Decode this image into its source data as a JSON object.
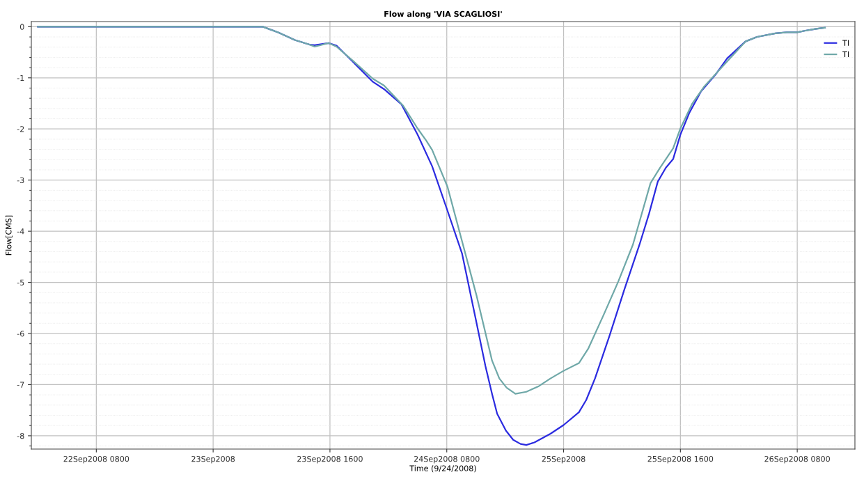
{
  "chart_data": {
    "type": "line",
    "title": "Flow along 'VIA SCAGLIOSI'",
    "xlabel": "Time (9/24/2008)",
    "ylabel": "Flow[CMS]",
    "series": [
      {
        "name": "TI",
        "color": "#2b2be0",
        "x": [
          "2008-09-22T00:00",
          "2008-09-23T06:06",
          "2008-09-23T06:48",
          "2008-09-23T08:54",
          "2008-09-23T11:12",
          "2008-09-23T13:12",
          "2008-09-23T13:54",
          "2008-09-23T15:48",
          "2008-09-23T16:54",
          "2008-09-23T19:06",
          "2008-09-23T21:54",
          "2008-09-23T23:24",
          "2008-09-24T01:48",
          "2008-09-24T04:00",
          "2008-09-24T06:00",
          "2008-09-24T08:06",
          "2008-09-24T10:06",
          "2008-09-24T12:06",
          "2008-09-24T13:18",
          "2008-09-24T14:12",
          "2008-09-24T14:54",
          "2008-09-24T16:06",
          "2008-09-24T17:06",
          "2008-09-24T18:06",
          "2008-09-24T18:54",
          "2008-09-24T20:00",
          "2008-09-24T22:12",
          "2008-09-25T00:00",
          "2008-09-25T02:06",
          "2008-09-25T03:06",
          "2008-09-25T04:18",
          "2008-09-25T06:18",
          "2008-09-25T08:18",
          "2008-09-25T10:24",
          "2008-09-25T11:42",
          "2008-09-25T12:54",
          "2008-09-25T14:00",
          "2008-09-25T15:00",
          "2008-09-25T16:00",
          "2008-09-25T17:12",
          "2008-09-25T18:48",
          "2008-09-25T20:54",
          "2008-09-25T22:24",
          "2008-09-26T00:54",
          "2008-09-26T02:30",
          "2008-09-26T05:00",
          "2008-09-26T06:36",
          "2008-09-26T08:00",
          "2008-09-26T09:00",
          "2008-09-26T10:36",
          "2008-09-26T11:48"
        ],
        "values": [
          0,
          0,
          0,
          -0.11,
          -0.26,
          -0.35,
          -0.36,
          -0.32,
          -0.37,
          -0.68,
          -1.08,
          -1.22,
          -1.52,
          -2.11,
          -2.73,
          -3.6,
          -4.44,
          -5.81,
          -6.64,
          -7.18,
          -7.57,
          -7.9,
          -8.08,
          -8.16,
          -8.18,
          -8.13,
          -7.96,
          -7.79,
          -7.54,
          -7.3,
          -6.88,
          -6.04,
          -5.15,
          -4.26,
          -3.66,
          -3.03,
          -2.76,
          -2.59,
          -2.11,
          -1.69,
          -1.27,
          -0.92,
          -0.62,
          -0.29,
          -0.2,
          -0.13,
          -0.11,
          -0.11,
          -0.08,
          -0.04,
          -0.02
        ]
      },
      {
        "name": "TI",
        "color": "#6fa8a8",
        "x": [
          "2008-09-22T00:00",
          "2008-09-23T06:06",
          "2008-09-23T06:48",
          "2008-09-23T08:54",
          "2008-09-23T11:12",
          "2008-09-23T13:12",
          "2008-09-23T13:54",
          "2008-09-23T15:48",
          "2008-09-23T16:54",
          "2008-09-23T19:06",
          "2008-09-23T21:54",
          "2008-09-23T23:24",
          "2008-09-24T02:00",
          "2008-09-24T04:00",
          "2008-09-24T05:12",
          "2008-09-24T06:00",
          "2008-09-24T08:06",
          "2008-09-24T10:06",
          "2008-09-24T12:06",
          "2008-09-24T14:12",
          "2008-09-24T15:12",
          "2008-09-24T16:12",
          "2008-09-24T17:24",
          "2008-09-24T18:54",
          "2008-09-24T20:36",
          "2008-09-24T22:12",
          "2008-09-25T00:00",
          "2008-09-25T02:06",
          "2008-09-25T03:24",
          "2008-09-25T05:30",
          "2008-09-25T07:30",
          "2008-09-25T09:30",
          "2008-09-25T11:54",
          "2008-09-25T13:12",
          "2008-09-25T15:00",
          "2008-09-25T16:00",
          "2008-09-25T17:36",
          "2008-09-25T19:12",
          "2008-09-25T21:42",
          "2008-09-26T00:54",
          "2008-09-26T02:30",
          "2008-09-26T05:00",
          "2008-09-26T06:36",
          "2008-09-26T08:00",
          "2008-09-26T09:00",
          "2008-09-26T10:36",
          "2008-09-26T11:48"
        ],
        "values": [
          0,
          0,
          0,
          -0.11,
          -0.26,
          -0.35,
          -0.39,
          -0.32,
          -0.39,
          -0.66,
          -1.02,
          -1.15,
          -1.54,
          -1.99,
          -2.23,
          -2.41,
          -3.13,
          -4.2,
          -5.27,
          -6.53,
          -6.88,
          -7.06,
          -7.18,
          -7.14,
          -7.03,
          -6.88,
          -6.73,
          -6.58,
          -6.29,
          -5.63,
          -4.98,
          -4.26,
          -3.06,
          -2.76,
          -2.38,
          -1.99,
          -1.51,
          -1.18,
          -0.79,
          -0.29,
          -0.2,
          -0.13,
          -0.11,
          -0.11,
          -0.08,
          -0.04,
          -0.02
        ]
      }
    ],
    "xlim": [
      "2008-09-21T23:06",
      "2008-09-26T15:54"
    ],
    "xticks": [
      {
        "value": "2008-09-22T08:00",
        "label": "22Sep2008 0800"
      },
      {
        "value": "2008-09-23T00:00",
        "label": "23Sep2008"
      },
      {
        "value": "2008-09-23T16:00",
        "label": "23Sep2008 1600"
      },
      {
        "value": "2008-09-24T08:00",
        "label": "24Sep2008 0800"
      },
      {
        "value": "2008-09-25T00:00",
        "label": "25Sep2008"
      },
      {
        "value": "2008-09-25T16:00",
        "label": "25Sep2008 1600"
      },
      {
        "value": "2008-09-26T08:00",
        "label": "26Sep2008 0800"
      }
    ],
    "ylim": [
      -8.26,
      0.1
    ],
    "yticks": [
      0,
      -1,
      -2,
      -3,
      -4,
      -5,
      -6,
      -7,
      -8,
      {
        "value": -0.2,
        "label": null
      },
      {
        "value": -0.4,
        "label": null
      },
      {
        "value": -0.6,
        "label": null
      },
      {
        "value": -0.8,
        "label": null
      },
      {
        "value": -1.2,
        "label": null
      },
      {
        "value": -1.4,
        "label": null
      },
      {
        "value": -1.6,
        "label": null
      },
      {
        "value": -1.8,
        "label": null
      },
      {
        "value": -2.2,
        "label": null
      },
      {
        "value": -2.4,
        "label": null
      },
      {
        "value": -2.6,
        "label": null
      },
      {
        "value": -2.8,
        "label": null
      },
      {
        "value": -3.2,
        "label": null
      },
      {
        "value": -3.4,
        "label": null
      },
      {
        "value": -3.6,
        "label": null
      },
      {
        "value": -3.8,
        "label": null
      },
      {
        "value": -4.2,
        "label": null
      },
      {
        "value": -4.4,
        "label": null
      },
      {
        "value": -4.6,
        "label": null
      },
      {
        "value": -4.8,
        "label": null
      },
      {
        "value": -5.2,
        "label": null
      },
      {
        "value": -5.4,
        "label": null
      },
      {
        "value": -5.6,
        "label": null
      },
      {
        "value": -5.8,
        "label": null
      },
      {
        "value": -6.2,
        "label": null
      },
      {
        "value": -6.4,
        "label": null
      },
      {
        "value": -6.6,
        "label": null
      },
      {
        "value": -6.8,
        "label": null
      },
      {
        "value": -7.2,
        "label": null
      },
      {
        "value": -7.4,
        "label": null
      },
      {
        "value": -7.6,
        "label": null
      },
      {
        "value": -7.8,
        "label": null
      },
      {
        "value": -8.2,
        "label": null
      }
    ],
    "grid": true,
    "legend": "top right",
    "marker": "none",
    "line_style": "solid"
  }
}
